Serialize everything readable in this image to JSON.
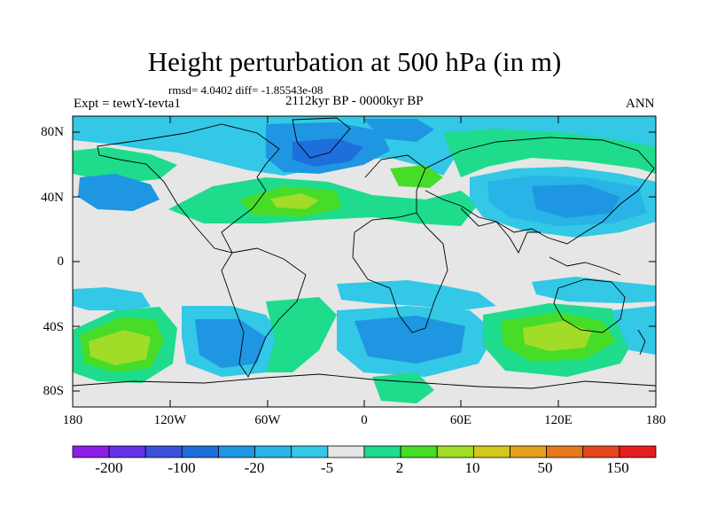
{
  "title": "Height perturbation at 500 hPa (in m)",
  "stats": "rmsd= 4.0402 diff= -1.85543e-08",
  "experiment": "Expt = tewtY-tevta1",
  "period": "2112kyr BP - 0000kyr BP",
  "season": "ANN",
  "y_ticks": [
    "80N",
    "40N",
    "0",
    "40S",
    "80S"
  ],
  "x_ticks": [
    "180",
    "120W",
    "60W",
    "0",
    "60E",
    "120E",
    "180"
  ],
  "colorbar": {
    "labels": [
      "-200",
      "-100",
      "-20",
      "-5",
      "2",
      "10",
      "50",
      "150"
    ],
    "colors": [
      "#8c1ee6",
      "#6432e6",
      "#3c50dc",
      "#1e6edc",
      "#1e96e1",
      "#28b4e6",
      "#32c8e6",
      "#e6e6e6",
      "#1edc8c",
      "#46dc28",
      "#a0dc28",
      "#d2c81e",
      "#e6a01e",
      "#e6781e",
      "#e6461e",
      "#e61e1e"
    ]
  },
  "map": {
    "background": "#e6e6e6",
    "lat_range": [
      -90,
      90
    ],
    "lon_range": [
      -180,
      180
    ]
  }
}
